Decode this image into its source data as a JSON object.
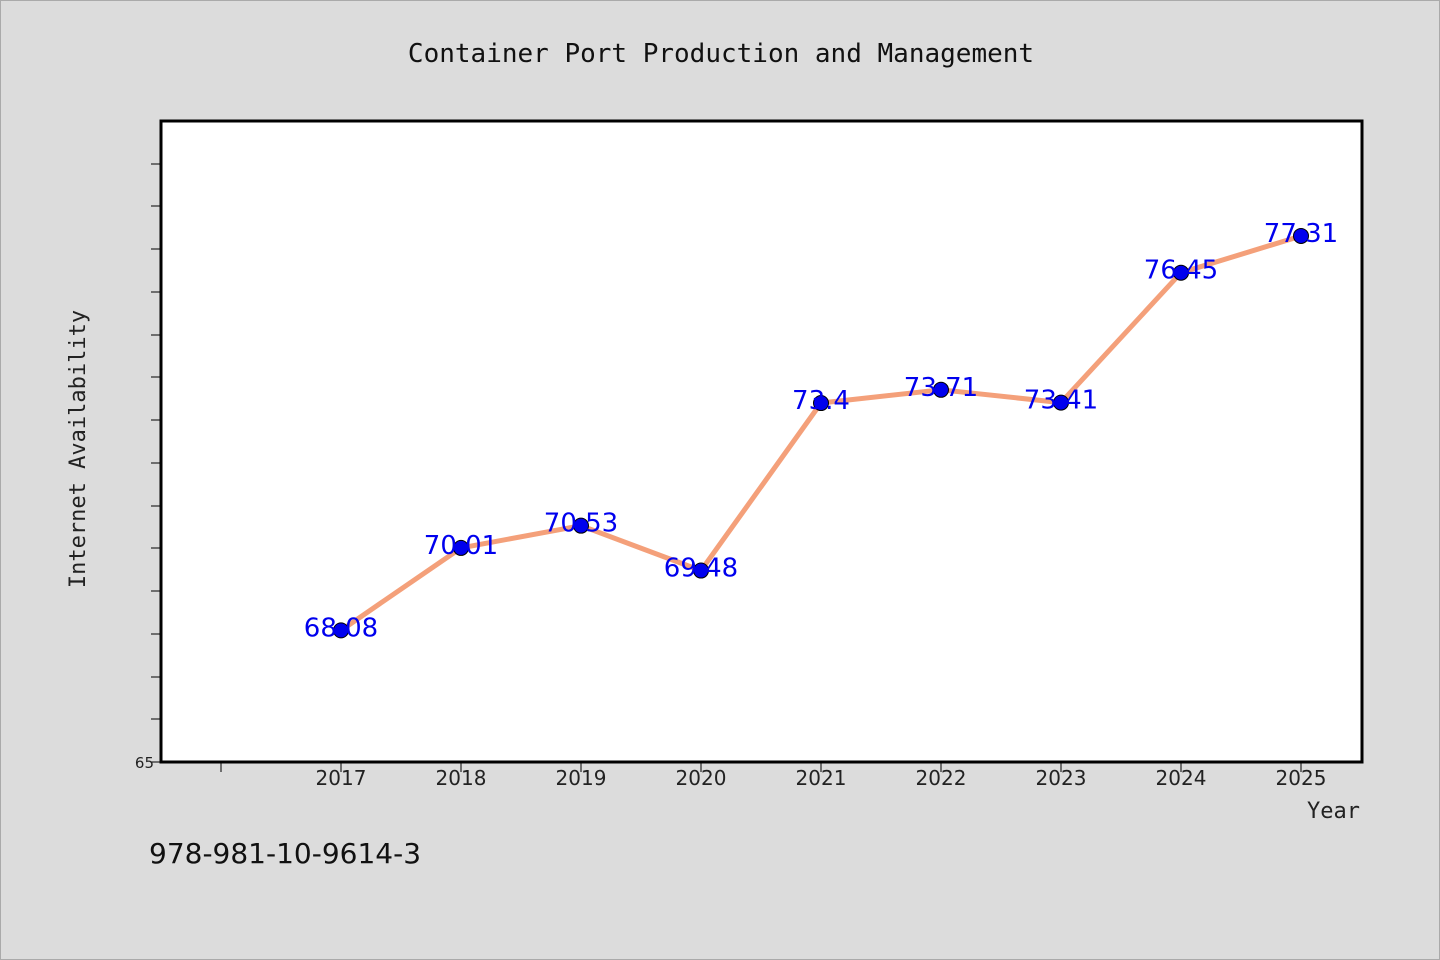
{
  "chart_data": {
    "type": "line",
    "title": "Container Port Production and Management",
    "xlabel": "Year",
    "ylabel": "Internet Availability",
    "categories": [
      "2017",
      "2018",
      "2019",
      "2020",
      "2021",
      "2022",
      "2023",
      "2024",
      "2025"
    ],
    "series": [
      {
        "values": [
          68.08,
          70.01,
          70.53,
          69.48,
          73.4,
          73.71,
          73.41,
          76.45,
          77.31
        ],
        "labels": [
          "68.08",
          "70.01",
          "70.53",
          "69.48",
          "73.4",
          "73.71",
          "73.41",
          "76.45",
          "77.31"
        ]
      }
    ],
    "ylim": [
      65,
      80
    ],
    "ytick_labels": [
      "65"
    ],
    "grid": false,
    "colors": {
      "line": "#f4a07a",
      "marker": "#0000ee",
      "data_label": "#0000ee",
      "plot_background": "#ffffff",
      "figure_background": "#dcdcdc"
    }
  },
  "footer": {
    "text": "978-981-10-9614-3"
  }
}
